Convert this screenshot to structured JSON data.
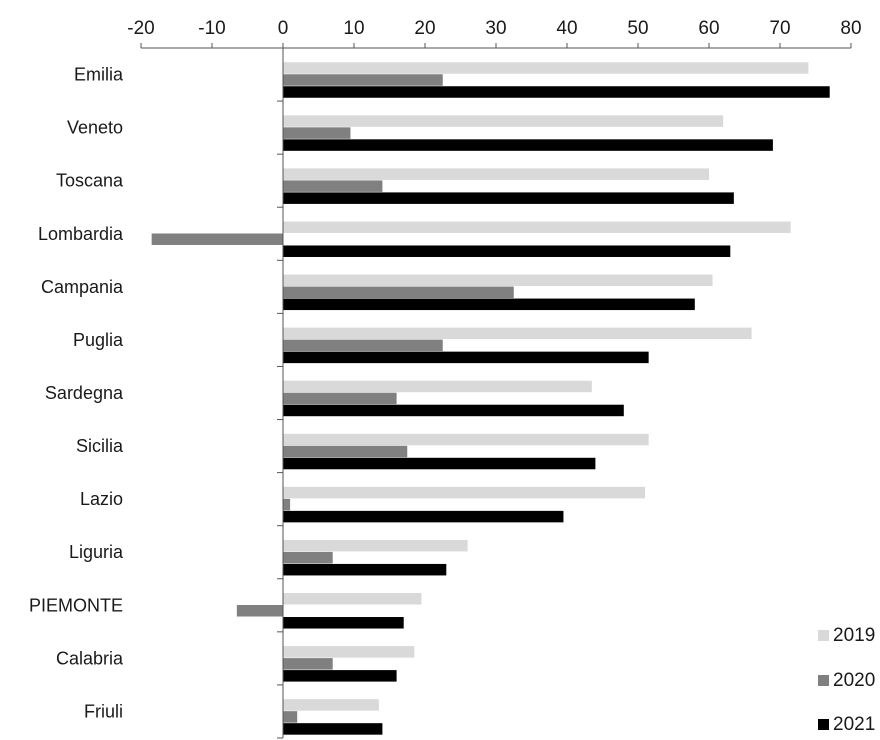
{
  "chart_data": {
    "type": "bar",
    "orientation": "horizontal",
    "categories": [
      "Emilia",
      "Veneto",
      "Toscana",
      "Lombardia",
      "Campania",
      "Puglia",
      "Sardegna",
      "Sicilia",
      "Lazio",
      "Liguria",
      "PIEMONTE",
      "Calabria",
      "Friuli"
    ],
    "series": [
      {
        "name": "2019",
        "color": "#d9d9d9",
        "values": [
          74,
          62,
          60,
          71.5,
          60.5,
          66,
          43.5,
          51.5,
          51,
          26,
          19.5,
          18.5,
          13.5
        ]
      },
      {
        "name": "2020",
        "color": "#808080",
        "values": [
          22.5,
          9.5,
          14,
          -18.5,
          32.5,
          22.5,
          16,
          17.5,
          1,
          7,
          -6.5,
          7,
          2
        ]
      },
      {
        "name": "2021",
        "color": "#000000",
        "values": [
          77,
          69,
          63.5,
          63,
          58,
          51.5,
          48,
          44,
          39.5,
          23,
          17,
          16,
          14
        ]
      }
    ],
    "xlim": [
      -20,
      80
    ],
    "xticks": [
      -20,
      -10,
      0,
      10,
      20,
      30,
      40,
      50,
      60,
      70,
      80
    ],
    "xaxis_position": "top",
    "grid": false,
    "legend_position": "bottom-right",
    "title": "",
    "xlabel": "",
    "ylabel": ""
  }
}
